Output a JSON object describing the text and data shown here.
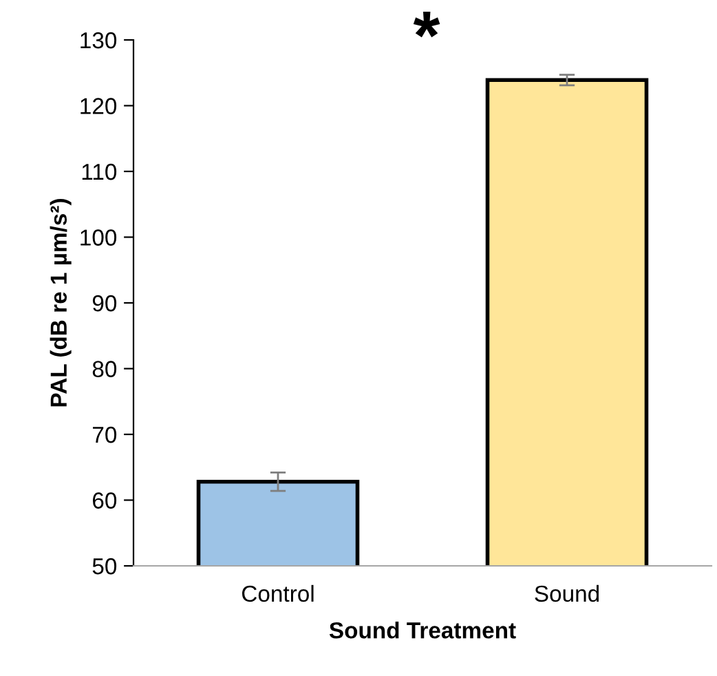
{
  "chart_data": {
    "type": "bar",
    "xlabel": "Sound Treatment",
    "ylabel": "PAL (dB re 1 µm/s²)",
    "categories": [
      "Control",
      "Sound"
    ],
    "values": [
      62.8,
      123.9
    ],
    "errors": [
      1.4,
      0.8
    ],
    "colors": [
      "#9dc3e6",
      "#ffe699"
    ],
    "ylim": [
      50,
      130
    ],
    "yticks": [
      50,
      60,
      70,
      80,
      90,
      100,
      110,
      120,
      130
    ],
    "grid": false,
    "legend": false,
    "annotations": [
      "*"
    ]
  }
}
